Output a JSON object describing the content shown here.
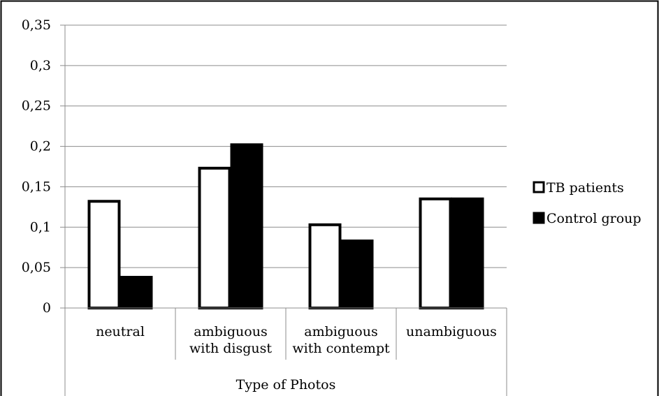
{
  "chart_data": {
    "type": "bar",
    "title": "",
    "xlabel": "Type of Photos",
    "ylabel": "",
    "ylim": [
      0,
      0.35
    ],
    "yticks": [
      0,
      0.05,
      0.1,
      0.15,
      0.2,
      0.25,
      0.3,
      0.35
    ],
    "ytick_labels": [
      "0",
      "0,05",
      "0,1",
      "0,15",
      "0,2",
      "0,25",
      "0,3",
      "0,35"
    ],
    "categories": [
      [
        "neutral"
      ],
      [
        "ambiguous",
        "with disgust"
      ],
      [
        "ambiguous",
        "with contempt"
      ],
      [
        "unambiguous"
      ]
    ],
    "series": [
      {
        "name": "TB patients",
        "values": [
          0.132,
          0.173,
          0.103,
          0.135
        ],
        "fill": "#ffffff",
        "stroke": "#000000"
      },
      {
        "name": "Control group",
        "values": [
          0.038,
          0.202,
          0.083,
          0.135
        ],
        "fill": "#000000",
        "stroke": "#000000"
      }
    ],
    "grid": true,
    "legend": "right"
  }
}
